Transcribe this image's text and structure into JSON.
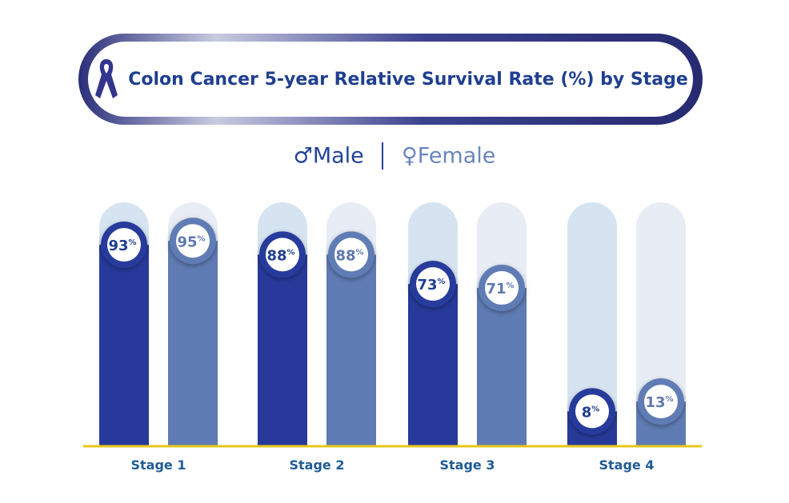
{
  "chart_data": {
    "type": "bar",
    "title": "Colon Cancer 5-year Relative Survival Rate (%) by Stage",
    "categories": [
      "Stage 1",
      "Stage 2",
      "Stage 3",
      "Stage 4"
    ],
    "series": [
      {
        "name": "Male",
        "symbol": "♂",
        "values": [
          93,
          88,
          73,
          8
        ],
        "color": "#273a9b",
        "track_color": "#d5e4f0",
        "label_color": "#1f3f8f"
      },
      {
        "name": "Female",
        "symbol": "♀",
        "values": [
          95,
          88,
          71,
          13
        ],
        "color": "#5f7bb4",
        "track_color": "#e8ecf4",
        "label_color": "#5f78b0"
      }
    ],
    "ylim": [
      0,
      100
    ],
    "value_suffix": "%",
    "baseline_color": "#e6c619",
    "legend": "top-center",
    "grid": false
  },
  "icons": {
    "title": "awareness-ribbon-icon"
  }
}
